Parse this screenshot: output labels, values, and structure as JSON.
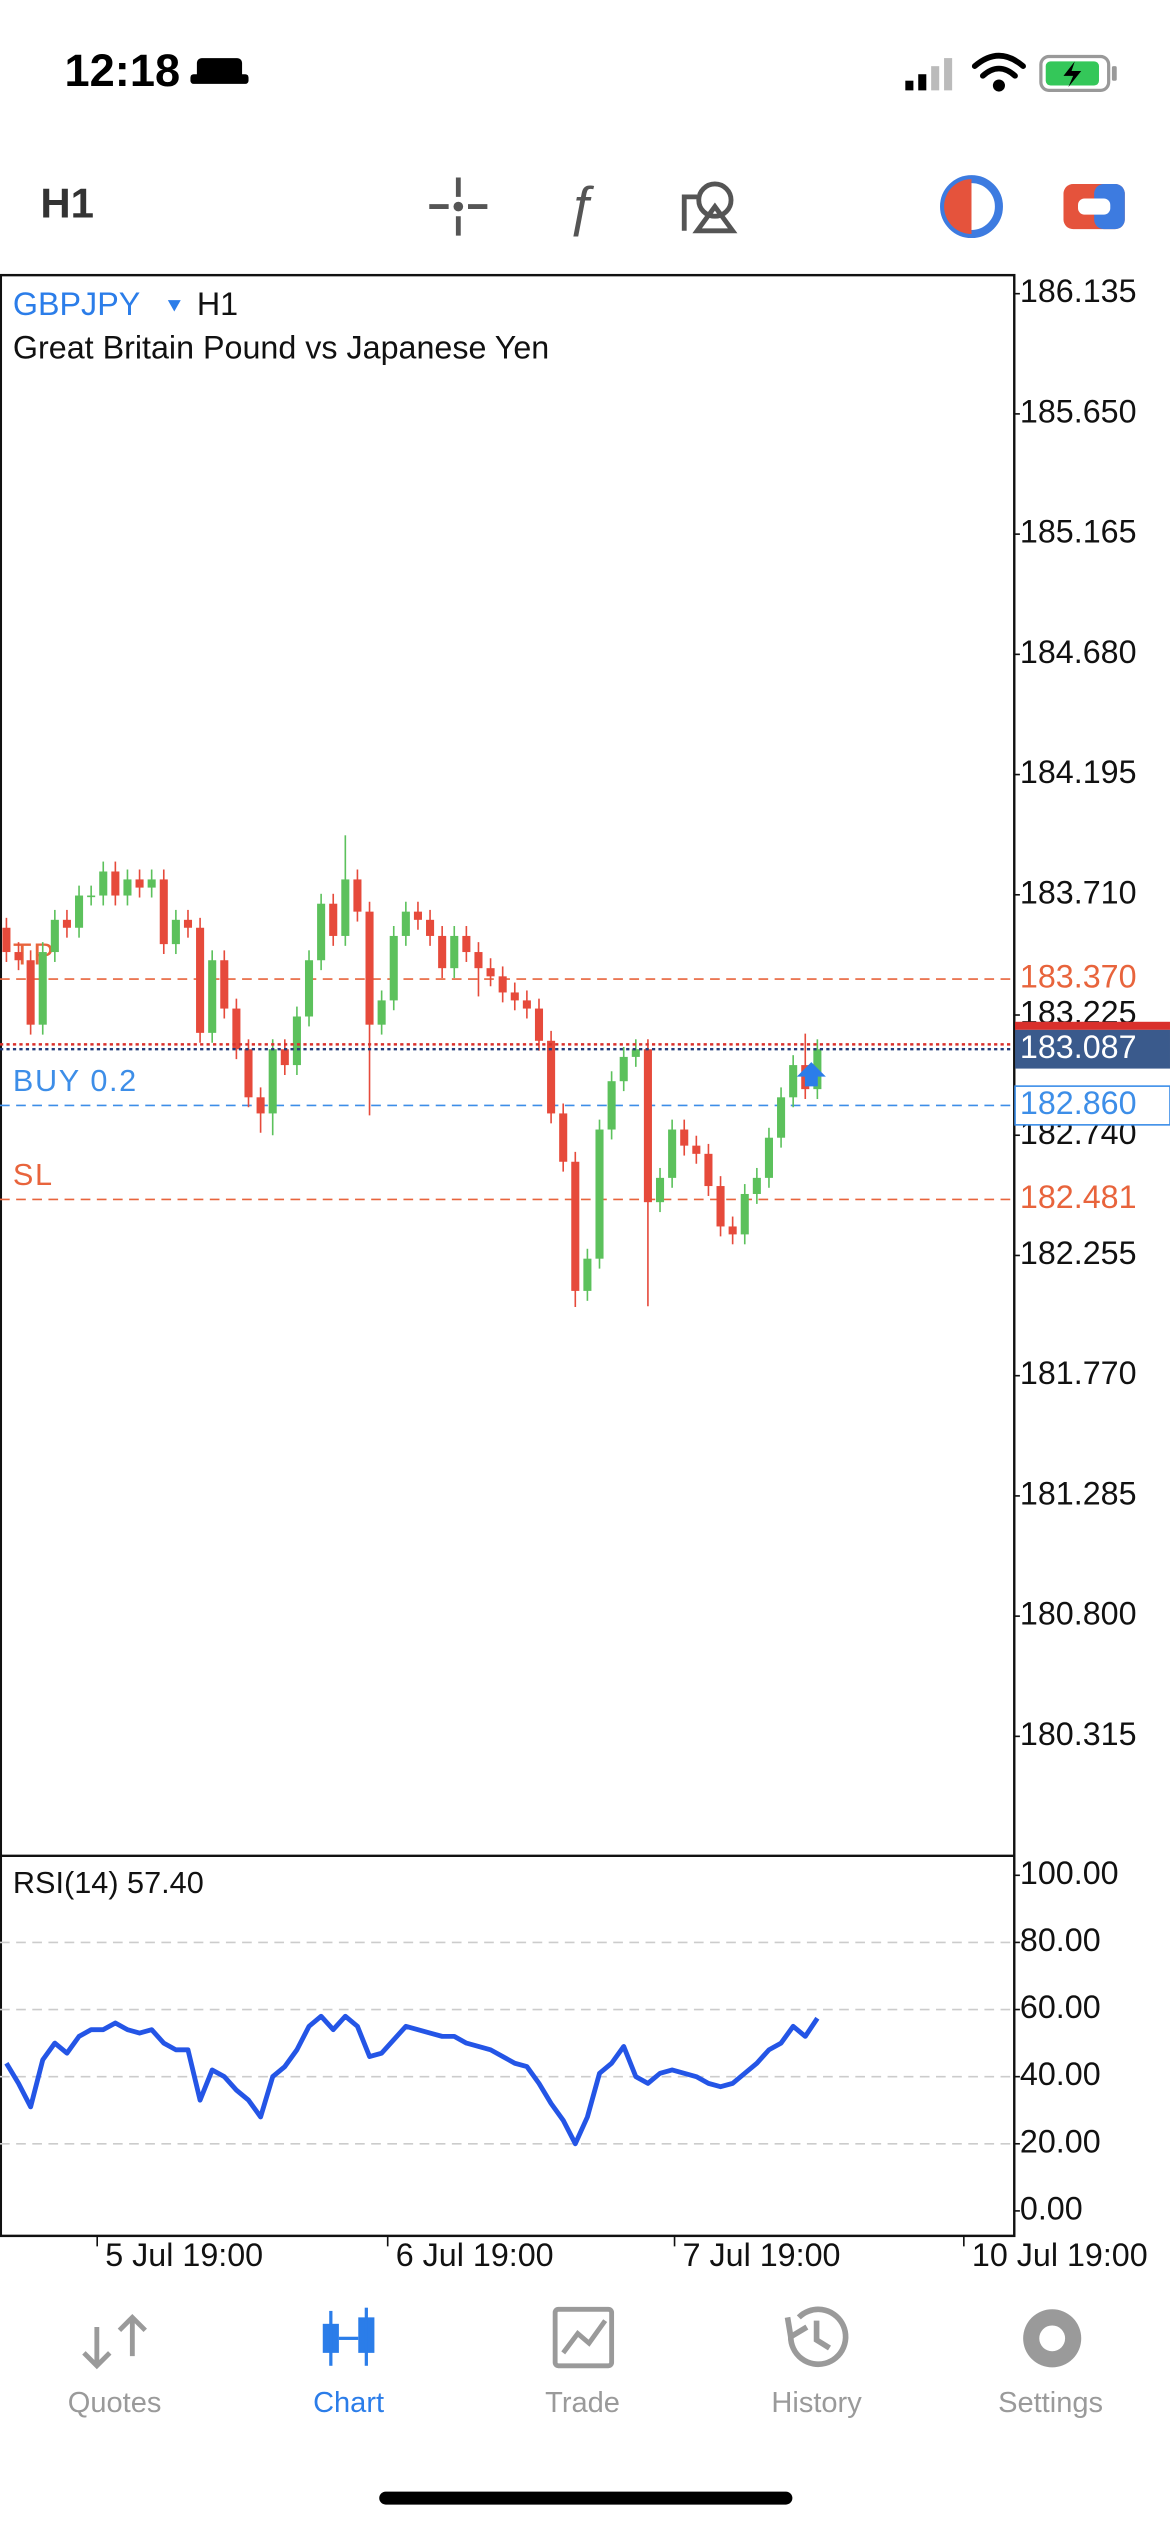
{
  "status_bar": {
    "time": "12:18"
  },
  "toolbar": {
    "timeframe": "H1"
  },
  "chart_data": [
    {
      "type": "candlestick",
      "title": "GBPJPY",
      "timeframe": "H1",
      "subtitle": "Great Britain Pound vs Japanese Yen",
      "up_color": "#5cc15c",
      "down_color": "#e64a3b",
      "open": [
        183.577,
        183.479,
        183.446,
        183.186,
        183.479,
        183.609,
        183.577,
        183.707,
        183.707,
        183.804,
        183.707,
        183.772,
        183.739,
        183.772,
        183.511,
        183.609,
        183.577,
        183.153,
        183.446,
        183.251,
        183.087,
        182.893,
        182.828,
        183.087,
        183.023,
        183.219,
        183.446,
        183.674,
        183.544,
        183.772,
        183.642,
        183.186,
        183.284,
        183.544,
        183.642,
        183.609,
        183.544,
        183.414,
        183.544,
        183.479,
        183.414,
        183.381,
        183.316,
        183.284,
        183.251,
        183.121,
        182.828,
        182.633,
        182.112,
        182.242,
        182.763,
        182.958,
        183.056,
        183.087,
        182.47,
        182.568,
        182.763,
        182.698,
        182.665,
        182.535,
        182.372,
        182.34,
        182.503,
        182.568,
        182.73,
        182.893,
        183.023,
        182.926
      ],
      "high": [
        183.617,
        183.519,
        183.486,
        183.519,
        183.649,
        183.649,
        183.747,
        183.747,
        183.844,
        183.844,
        183.812,
        183.812,
        183.812,
        183.812,
        183.649,
        183.649,
        183.617,
        183.486,
        183.486,
        183.291,
        183.127,
        182.933,
        183.127,
        183.127,
        183.259,
        183.486,
        183.714,
        183.714,
        183.95,
        183.812,
        183.682,
        183.324,
        183.584,
        183.682,
        183.682,
        183.649,
        183.584,
        183.584,
        183.584,
        183.519,
        183.454,
        183.421,
        183.356,
        183.324,
        183.291,
        183.161,
        182.868,
        182.673,
        182.282,
        182.803,
        182.998,
        183.096,
        183.127,
        183.127,
        182.608,
        182.803,
        182.803,
        182.738,
        182.705,
        182.575,
        182.412,
        182.543,
        182.608,
        182.77,
        182.933,
        183.063,
        183.15,
        183.127
      ],
      "low": [
        183.439,
        183.406,
        183.146,
        183.146,
        183.439,
        183.537,
        183.537,
        183.667,
        183.667,
        183.667,
        183.667,
        183.699,
        183.699,
        183.471,
        183.471,
        183.537,
        183.113,
        183.113,
        183.211,
        183.047,
        182.853,
        182.75,
        182.74,
        182.983,
        182.983,
        183.179,
        183.406,
        183.504,
        183.504,
        183.602,
        182.82,
        183.146,
        183.244,
        183.504,
        183.569,
        183.504,
        183.374,
        183.374,
        183.439,
        183.3,
        183.341,
        183.276,
        183.244,
        183.211,
        183.081,
        182.788,
        182.593,
        182.047,
        182.072,
        182.202,
        182.723,
        182.918,
        183.016,
        182.05,
        182.43,
        182.528,
        182.658,
        182.625,
        182.495,
        182.332,
        182.3,
        182.3,
        182.463,
        182.528,
        182.69,
        182.853,
        182.886,
        182.886
      ],
      "close": [
        183.479,
        183.446,
        183.186,
        183.479,
        183.609,
        183.577,
        183.707,
        183.707,
        183.804,
        183.707,
        183.772,
        183.739,
        183.772,
        183.511,
        183.609,
        183.577,
        183.153,
        183.446,
        183.251,
        183.087,
        182.893,
        182.828,
        183.087,
        183.023,
        183.219,
        183.446,
        183.674,
        183.544,
        183.772,
        183.642,
        183.186,
        183.284,
        183.544,
        183.642,
        183.609,
        183.544,
        183.414,
        183.544,
        183.479,
        183.414,
        183.381,
        183.316,
        183.284,
        183.251,
        183.121,
        182.828,
        182.633,
        182.112,
        182.242,
        182.763,
        182.958,
        183.056,
        183.087,
        182.47,
        182.568,
        182.763,
        182.698,
        182.665,
        182.535,
        182.372,
        182.34,
        182.503,
        182.568,
        182.73,
        182.893,
        183.023,
        182.926,
        183.087
      ],
      "xlim": [
        -0.53,
        83.2
      ],
      "ylim": [
        179.833,
        186.213
      ],
      "yticks": [
        {
          "value": 186.135,
          "label": "186.135"
        },
        {
          "value": 185.65,
          "label": "185.650"
        },
        {
          "value": 185.165,
          "label": "185.165"
        },
        {
          "value": 184.68,
          "label": "184.680"
        },
        {
          "value": 184.195,
          "label": "184.195"
        },
        {
          "value": 183.71,
          "label": "183.710"
        },
        {
          "value": 183.225,
          "label": "183.225"
        },
        {
          "value": 182.74,
          "label": "182.740"
        },
        {
          "value": 182.255,
          "label": "182.255"
        },
        {
          "value": 181.77,
          "label": "181.770"
        },
        {
          "value": 181.285,
          "label": "181.285"
        },
        {
          "value": 180.8,
          "label": "180.800"
        },
        {
          "value": 180.315,
          "label": "180.315"
        }
      ],
      "order_lines": [
        {
          "name": "TP",
          "value": 183.37,
          "value_label": "183.370",
          "color": "#e8643c"
        },
        {
          "name": "BUY 0.2",
          "value": 182.86,
          "value_label": "182.860",
          "color": "#3d8ee8"
        },
        {
          "name": "SL",
          "value": 182.481,
          "value_label": "182.481",
          "color": "#e8643c"
        }
      ],
      "last_price": {
        "value": 183.087,
        "value_label": "183.087"
      }
    },
    {
      "type": "line",
      "title": "RSI(14) 57.40",
      "color": "#2455e6",
      "values": [
        44,
        38,
        31,
        45,
        50,
        47,
        52,
        54,
        54,
        56,
        54,
        53,
        54,
        50,
        48,
        48,
        33,
        42,
        40,
        36,
        33,
        28,
        40,
        43,
        48,
        55,
        58,
        54,
        58,
        55,
        46,
        47,
        51,
        55,
        54,
        53,
        52,
        52,
        50,
        49,
        48,
        46,
        44,
        43,
        38,
        32,
        27,
        20,
        28,
        41,
        44,
        49,
        40,
        38,
        41,
        42,
        41,
        40,
        38,
        37,
        38,
        41,
        44,
        48,
        50,
        55,
        52,
        57.4
      ],
      "xlim": [
        -0.53,
        83.2
      ],
      "ylim": [
        -7.2,
        105.8
      ],
      "yticks": [
        {
          "value": 100,
          "label": "100.00"
        },
        {
          "value": 80,
          "label": "80.00"
        },
        {
          "value": 60,
          "label": "60.00"
        },
        {
          "value": 40,
          "label": "40.00"
        },
        {
          "value": 20,
          "label": "20.00"
        },
        {
          "value": 0,
          "label": "0.00"
        }
      ],
      "xticks": [
        {
          "value": 7.5,
          "label": "5 Jul 19:00"
        },
        {
          "value": 31.5,
          "label": "6 Jul 19:00"
        },
        {
          "value": 55.2,
          "label": "7 Jul 19:00"
        },
        {
          "value": 79.1,
          "label": "10 Jul 19:00"
        }
      ],
      "grid": true
    }
  ],
  "tabs": [
    "Quotes",
    "Chart",
    "Trade",
    "History",
    "Settings"
  ]
}
